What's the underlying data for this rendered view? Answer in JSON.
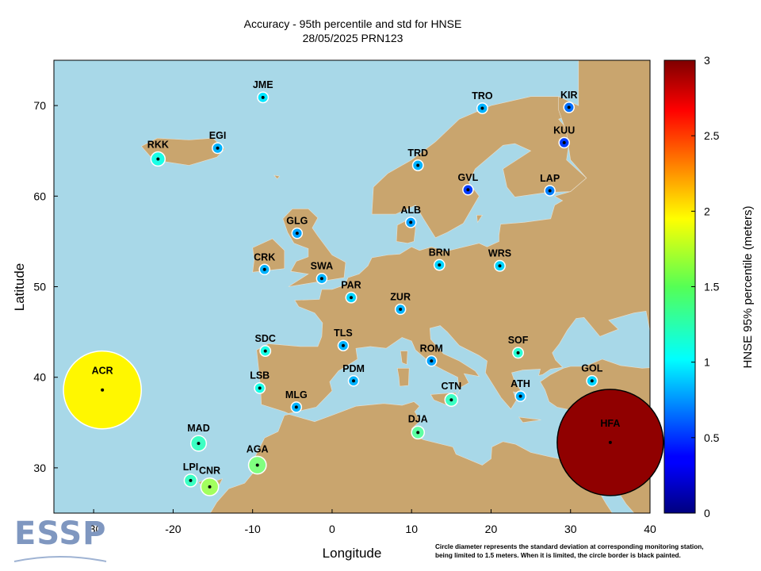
{
  "title": "Accuracy - 95th percentile and std for HNSE",
  "subtitle": "28/05/2025 PRN123",
  "footnote": [
    "Circle diameter represents the standard deviation at corresponding monitoring station,",
    "being limited to 1.5 meters. When it is limited, the circle border is black painted."
  ],
  "logo_text": "ESSP",
  "colors": {
    "sea": "#a8d8e8",
    "land": "#c9a56e",
    "border": "#ffffff"
  },
  "chart_data": {
    "type": "scatter",
    "title": "Accuracy - 95th percentile and std for HNSE",
    "subtitle": "28/05/2025 PRN123",
    "xlabel": "Longitude",
    "ylabel": "Latitude",
    "xlim": [
      -35,
      40
    ],
    "ylim": [
      25,
      75
    ],
    "xticks": [
      -30,
      -20,
      -10,
      0,
      10,
      20,
      30,
      40
    ],
    "yticks": [
      30,
      40,
      50,
      60,
      70
    ],
    "colorbar": {
      "label": "HNSE 95% percentile (meters)",
      "range": [
        0,
        3
      ],
      "ticks": [
        0,
        0.5,
        1,
        1.5,
        2,
        2.5,
        3
      ],
      "colormap": "jet"
    },
    "std_limit_m": 1.5,
    "stations": [
      {
        "name": "JME",
        "lon": -8.7,
        "lat": 70.9,
        "value": 1.05,
        "std": 0.15,
        "limited": false
      },
      {
        "name": "EGI",
        "lon": -14.4,
        "lat": 65.3,
        "value": 0.9,
        "std": 0.15,
        "limited": false
      },
      {
        "name": "RKK",
        "lon": -21.9,
        "lat": 64.1,
        "value": 1.2,
        "std": 0.2,
        "limited": false
      },
      {
        "name": "TRO",
        "lon": 18.9,
        "lat": 69.7,
        "value": 0.9,
        "std": 0.15,
        "limited": false
      },
      {
        "name": "KIR",
        "lon": 29.8,
        "lat": 69.8,
        "value": 0.7,
        "std": 0.1,
        "limited": false
      },
      {
        "name": "KUU",
        "lon": 29.2,
        "lat": 65.9,
        "value": 0.55,
        "std": 0.08,
        "limited": false
      },
      {
        "name": "TRD",
        "lon": 10.8,
        "lat": 63.4,
        "value": 0.9,
        "std": 0.15,
        "limited": false
      },
      {
        "name": "GVL",
        "lon": 17.1,
        "lat": 60.7,
        "value": 0.55,
        "std": 0.1,
        "limited": false
      },
      {
        "name": "LAP",
        "lon": 27.4,
        "lat": 60.6,
        "value": 0.75,
        "std": 0.12,
        "limited": false
      },
      {
        "name": "ALB",
        "lon": 9.9,
        "lat": 57.1,
        "value": 0.85,
        "std": 0.12,
        "limited": false
      },
      {
        "name": "GLG",
        "lon": -4.4,
        "lat": 55.9,
        "value": 0.85,
        "std": 0.12,
        "limited": false
      },
      {
        "name": "BRN",
        "lon": 13.5,
        "lat": 52.4,
        "value": 1.0,
        "std": 0.15,
        "limited": false
      },
      {
        "name": "WRS",
        "lon": 21.1,
        "lat": 52.3,
        "value": 1.0,
        "std": 0.15,
        "limited": false
      },
      {
        "name": "CRK",
        "lon": -8.5,
        "lat": 51.9,
        "value": 0.9,
        "std": 0.12,
        "limited": false
      },
      {
        "name": "SWA",
        "lon": -1.3,
        "lat": 50.9,
        "value": 0.9,
        "std": 0.12,
        "limited": false
      },
      {
        "name": "PAR",
        "lon": 2.4,
        "lat": 48.8,
        "value": 1.0,
        "std": 0.15,
        "limited": false
      },
      {
        "name": "ZUR",
        "lon": 8.6,
        "lat": 47.5,
        "value": 0.9,
        "std": 0.12,
        "limited": false
      },
      {
        "name": "TLS",
        "lon": 1.4,
        "lat": 43.5,
        "value": 0.9,
        "std": 0.12,
        "limited": false
      },
      {
        "name": "SDC",
        "lon": -8.4,
        "lat": 42.9,
        "value": 1.2,
        "std": 0.15,
        "limited": false
      },
      {
        "name": "ROM",
        "lon": 12.5,
        "lat": 41.8,
        "value": 0.85,
        "std": 0.12,
        "limited": false
      },
      {
        "name": "SOF",
        "lon": 23.4,
        "lat": 42.7,
        "value": 1.25,
        "std": 0.15,
        "limited": false
      },
      {
        "name": "PDM",
        "lon": 2.7,
        "lat": 39.6,
        "value": 0.9,
        "std": 0.12,
        "limited": false
      },
      {
        "name": "LSB",
        "lon": -9.1,
        "lat": 38.8,
        "value": 1.2,
        "std": 0.15,
        "limited": false
      },
      {
        "name": "GOL",
        "lon": 32.7,
        "lat": 39.6,
        "value": 1.0,
        "std": 0.15,
        "limited": false
      },
      {
        "name": "ACR",
        "lon": -28.9,
        "lat": 38.6,
        "value": 1.9,
        "std": 1.1,
        "limited": false
      },
      {
        "name": "MLG",
        "lon": -4.5,
        "lat": 36.7,
        "value": 0.9,
        "std": 0.12,
        "limited": false
      },
      {
        "name": "CTN",
        "lon": 15.0,
        "lat": 37.5,
        "value": 1.3,
        "std": 0.18,
        "limited": false
      },
      {
        "name": "ATH",
        "lon": 23.7,
        "lat": 37.9,
        "value": 0.9,
        "std": 0.12,
        "limited": false
      },
      {
        "name": "DJA",
        "lon": 10.8,
        "lat": 33.9,
        "value": 1.4,
        "std": 0.18,
        "limited": false
      },
      {
        "name": "HFA",
        "lon": 35.0,
        "lat": 32.8,
        "value": 2.95,
        "std": 1.5,
        "limited": true
      },
      {
        "name": "MAD",
        "lon": -16.8,
        "lat": 32.7,
        "value": 1.3,
        "std": 0.22,
        "limited": false
      },
      {
        "name": "AGA",
        "lon": -9.4,
        "lat": 30.3,
        "value": 1.5,
        "std": 0.25,
        "limited": false
      },
      {
        "name": "LPI",
        "lon": -17.8,
        "lat": 28.6,
        "value": 1.3,
        "std": 0.18,
        "limited": false
      },
      {
        "name": "CNR",
        "lon": -15.4,
        "lat": 27.9,
        "value": 1.6,
        "std": 0.25,
        "limited": false
      }
    ]
  }
}
